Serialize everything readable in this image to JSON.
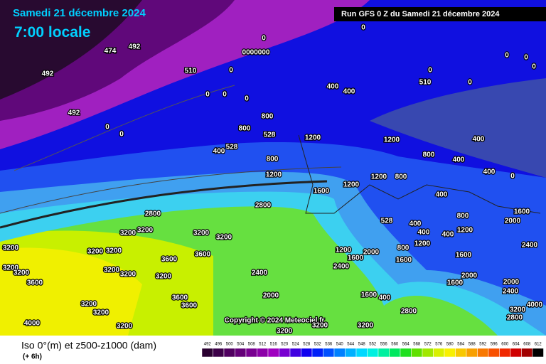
{
  "header": {
    "date": "Samedi 21 décembre 2024",
    "time": "7:00 locale",
    "run": "Run GFS 0 Z du Samedi 21 décembre 2024"
  },
  "map": {
    "labels": [
      "474",
      "492",
      "510",
      "492",
      "492",
      "0",
      "0",
      "0",
      "0000000",
      "0",
      "0",
      "0",
      "0",
      "0",
      "400",
      "400",
      "800",
      "800",
      "528",
      "528",
      "400",
      "800",
      "1200",
      "1200",
      "1200",
      "1200",
      "800",
      "1200",
      "1600",
      "2800",
      "2800",
      "3200",
      "3200",
      "3200",
      "3200",
      "3200",
      "3200",
      "3200",
      "3600",
      "3600",
      "3200",
      "3200",
      "3600",
      "3200",
      "3200",
      "3200",
      "2400",
      "2000",
      "3600",
      "3600",
      "3200",
      "3200",
      "4000",
      "3200",
      "2800",
      "3200",
      "3200",
      "3200",
      "400",
      "800",
      "400",
      "400",
      "0",
      "400",
      "528",
      "400",
      "400",
      "400",
      "1200",
      "800",
      "1600",
      "2000",
      "800",
      "1200",
      "1600",
      "1600",
      "2400",
      "2000",
      "1200",
      "1600",
      "2400",
      "2000",
      "1600",
      "2000",
      "2400",
      "1600",
      "400",
      "2800",
      "0",
      "0",
      "0",
      "0",
      "510",
      "0",
      "4000",
      "3200"
    ],
    "copyright": "Copyright © 2024 Meteociel.fr"
  },
  "legend": {
    "title": "Iso 0°(m) et z500-z1000 (dam)",
    "step": "(+ 6h)",
    "values": [
      492,
      496,
      500,
      504,
      508,
      512,
      516,
      520,
      524,
      528,
      532,
      536,
      540,
      544,
      548,
      552,
      556,
      560,
      564,
      568,
      572,
      576,
      580,
      584,
      588,
      592,
      596,
      600,
      604,
      608,
      612
    ]
  }
}
